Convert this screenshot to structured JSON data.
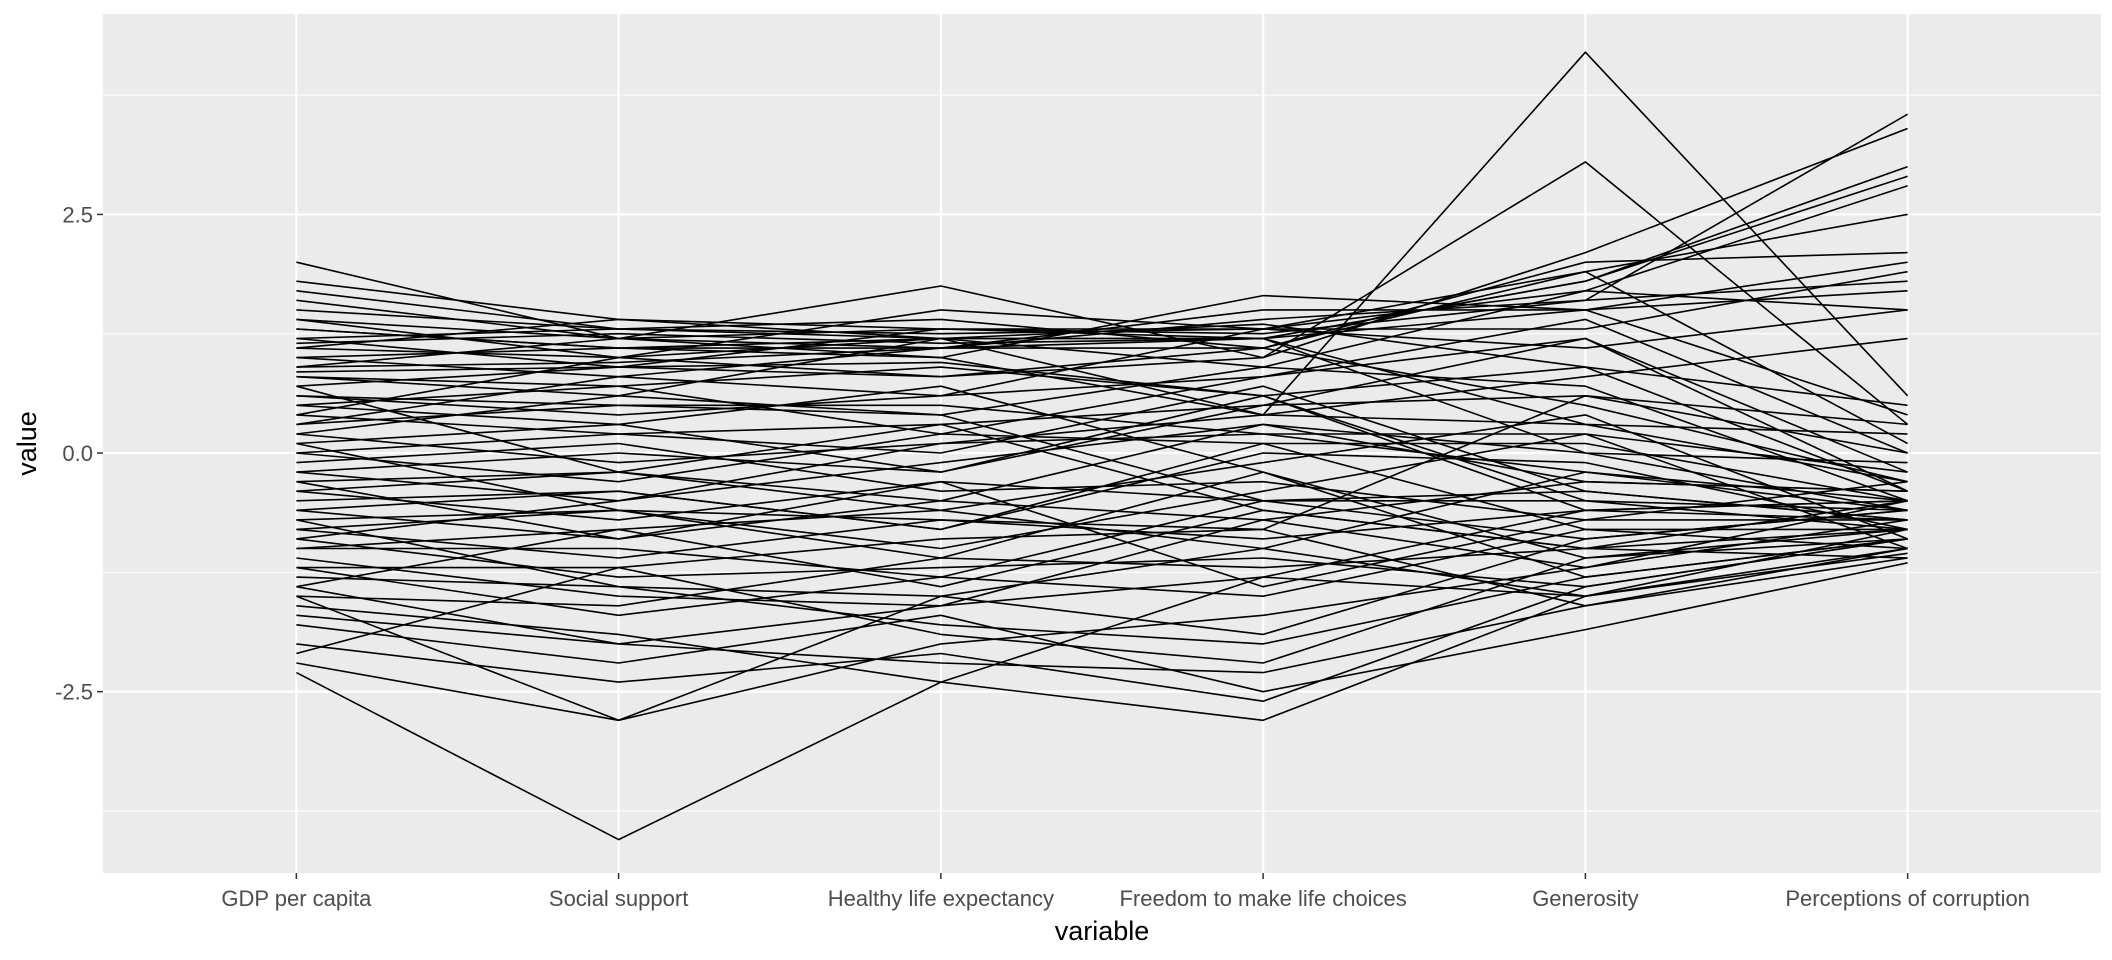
{
  "chart_data": {
    "type": "line",
    "xlabel": "variable",
    "ylabel": "value",
    "categories": [
      "GDP per capita",
      "Social support",
      "Healthy life expectancy",
      "Freedom to make life choices",
      "Generosity",
      "Perceptions of corruption"
    ],
    "ylim": [
      -4.4,
      4.6
    ],
    "yticks": [
      -2.5,
      0.0,
      2.5
    ],
    "ytick_labels": [
      "-2.5",
      "0.0",
      "2.5"
    ],
    "grid": true,
    "legend": "none",
    "colors": {
      "panel": "#ebebeb",
      "grid": "#ffffff",
      "line": "#000000",
      "tick_text": "#4d4d4d"
    },
    "series": [
      {
        "values": [
          2.0,
          1.2,
          1.3,
          1.3,
          1.7,
          2.8
        ]
      },
      {
        "values": [
          1.8,
          1.4,
          1.2,
          1.2,
          1.8,
          3.0
        ]
      },
      {
        "values": [
          1.7,
          1.3,
          1.4,
          1.1,
          1.9,
          2.5
        ]
      },
      {
        "values": [
          1.6,
          1.2,
          1.75,
          1.0,
          2.1,
          3.4
        ]
      },
      {
        "values": [
          1.5,
          1.3,
          1.2,
          1.2,
          1.8,
          2.9
        ]
      },
      {
        "values": [
          1.4,
          1.0,
          1.5,
          1.3,
          1.3,
          1.9
        ]
      },
      {
        "values": [
          1.3,
          1.1,
          1.1,
          1.4,
          1.6,
          3.55
        ]
      },
      {
        "values": [
          1.2,
          0.9,
          1.3,
          1.2,
          1.5,
          1.7
        ]
      },
      {
        "values": [
          1.1,
          1.0,
          1.2,
          0.9,
          1.7,
          1.5
        ]
      },
      {
        "values": [
          1.0,
          0.8,
          1.1,
          1.1,
          2.0,
          2.1
        ]
      },
      {
        "values": [
          0.9,
          1.2,
          1.0,
          1.65,
          1.5,
          0.4
        ]
      },
      {
        "values": [
          0.8,
          0.6,
          1.2,
          0.4,
          4.2,
          0.6
        ]
      },
      {
        "values": [
          0.7,
          0.9,
          0.8,
          1.0,
          3.05,
          0.3
        ]
      },
      {
        "values": [
          0.6,
          0.4,
          0.6,
          0.8,
          1.2,
          -0.2
        ]
      },
      {
        "values": [
          0.5,
          0.7,
          0.9,
          0.6,
          0.9,
          -0.4
        ]
      },
      {
        "values": [
          0.4,
          0.2,
          0.3,
          0.5,
          0.6,
          0.0
        ]
      },
      {
        "values": [
          0.3,
          0.5,
          0.5,
          0.2,
          -0.2,
          -0.6
        ]
      },
      {
        "values": [
          0.2,
          -0.1,
          0.1,
          0.4,
          0.3,
          -0.3
        ]
      },
      {
        "values": [
          0.1,
          0.3,
          -0.2,
          0.6,
          -0.5,
          -0.8
        ]
      },
      {
        "values": [
          0.0,
          -0.3,
          0.2,
          0.1,
          0.1,
          -0.5
        ]
      },
      {
        "values": [
          -0.1,
          0.1,
          -0.4,
          -0.3,
          -0.7,
          -0.7
        ]
      },
      {
        "values": [
          -0.2,
          -0.5,
          -0.1,
          0.3,
          -0.3,
          -0.4
        ]
      },
      {
        "values": [
          -0.3,
          -0.2,
          -0.6,
          -0.1,
          0.4,
          -0.9
        ]
      },
      {
        "values": [
          -0.4,
          -0.7,
          -0.3,
          -0.5,
          -0.9,
          -0.6
        ]
      },
      {
        "values": [
          -0.5,
          -0.4,
          -0.8,
          0.0,
          -0.1,
          -0.8
        ]
      },
      {
        "values": [
          -0.6,
          -0.9,
          -0.5,
          -0.7,
          -1.2,
          -0.5
        ]
      },
      {
        "values": [
          -0.7,
          -0.6,
          -1.0,
          -0.4,
          0.2,
          -1.0
        ]
      },
      {
        "values": [
          -0.8,
          -1.1,
          -0.7,
          -0.9,
          -0.6,
          -0.7
        ]
      },
      {
        "values": [
          -0.9,
          -1.3,
          -1.2,
          -1.1,
          -1.4,
          -0.9
        ]
      },
      {
        "values": [
          -1.0,
          -0.8,
          -1.4,
          -0.6,
          -1.0,
          -1.1
        ]
      },
      {
        "values": [
          -1.1,
          -1.5,
          -1.6,
          -1.3,
          -1.5,
          -0.8
        ]
      },
      {
        "values": [
          -1.2,
          -1.7,
          -1.3,
          -1.5,
          -0.8,
          -1.0
        ]
      },
      {
        "values": [
          -1.3,
          -1.4,
          -1.8,
          -2.0,
          -1.3,
          -0.9
        ]
      },
      {
        "values": [
          -1.4,
          -2.0,
          -2.2,
          -2.3,
          -1.6,
          -1.1
        ]
      },
      {
        "values": [
          -1.5,
          -2.8,
          -2.0,
          -1.7,
          -1.2,
          -0.7
        ]
      },
      {
        "values": [
          -1.6,
          -1.9,
          -2.4,
          -2.8,
          -1.5,
          -1.0
        ]
      },
      {
        "values": [
          -1.8,
          -2.2,
          -1.7,
          -2.5,
          -1.85,
          -1.15
        ]
      },
      {
        "values": [
          -2.0,
          -2.4,
          -2.1,
          -2.6,
          -1.4,
          -0.9
        ]
      },
      {
        "values": [
          -2.1,
          -1.2,
          -1.9,
          -2.2,
          -1.1,
          -0.8
        ]
      },
      {
        "values": [
          -2.2,
          -2.8,
          -1.5,
          -1.9,
          -0.9,
          -0.6
        ]
      },
      {
        "values": [
          -2.3,
          -4.05,
          -2.4,
          -1.3,
          -0.6,
          -0.5
        ]
      },
      {
        "values": [
          1.2,
          1.3,
          1.25,
          1.3,
          1.1,
          1.5
        ]
      },
      {
        "values": [
          1.1,
          1.4,
          1.3,
          1.25,
          1.6,
          1.8
        ]
      },
      {
        "values": [
          1.3,
          1.1,
          1.2,
          1.35,
          0.9,
          0.5
        ]
      },
      {
        "values": [
          0.9,
          0.95,
          1.1,
          1.2,
          0.3,
          0.2
        ]
      },
      {
        "values": [
          0.4,
          1.0,
          0.8,
          1.1,
          0.5,
          -0.3
        ]
      },
      {
        "values": [
          0.3,
          0.8,
          0.6,
          1.3,
          1.9,
          0.1
        ]
      },
      {
        "values": [
          0.2,
          0.6,
          0.4,
          0.9,
          0.7,
          -0.5
        ]
      },
      {
        "values": [
          0.0,
          0.2,
          0.0,
          0.7,
          -0.4,
          -0.7
        ]
      },
      {
        "values": [
          -0.2,
          0.0,
          -0.2,
          0.5,
          1.2,
          -0.4
        ]
      },
      {
        "values": [
          -0.4,
          -0.2,
          -0.5,
          0.3,
          0.0,
          -0.6
        ]
      },
      {
        "values": [
          -0.6,
          -0.4,
          -0.8,
          0.1,
          -0.8,
          -0.8
        ]
      },
      {
        "values": [
          -0.8,
          -0.6,
          -1.1,
          -0.2,
          -1.1,
          -0.9
        ]
      },
      {
        "values": [
          -1.0,
          -1.0,
          -1.3,
          -0.5,
          -0.4,
          -0.7
        ]
      },
      {
        "values": [
          -1.2,
          -1.2,
          -0.9,
          -0.8,
          -1.6,
          -1.0
        ]
      },
      {
        "values": [
          -1.4,
          -0.8,
          -0.6,
          -1.0,
          -0.2,
          -0.5
        ]
      },
      {
        "values": [
          -1.5,
          -1.6,
          -1.1,
          -1.2,
          -1.0,
          -0.8
        ]
      },
      {
        "values": [
          0.5,
          0.3,
          0.7,
          -0.2,
          -1.3,
          -0.9
        ]
      },
      {
        "values": [
          0.6,
          0.5,
          0.4,
          -0.5,
          -0.5,
          -0.6
        ]
      },
      {
        "values": [
          0.8,
          0.7,
          0.2,
          0.8,
          1.4,
          0.0
        ]
      },
      {
        "values": [
          0.7,
          -0.2,
          0.3,
          -0.6,
          -1.0,
          -0.5
        ]
      },
      {
        "values": [
          1.0,
          1.1,
          1.0,
          0.4,
          0.8,
          1.2
        ]
      },
      {
        "values": [
          1.4,
          1.2,
          1.1,
          1.5,
          1.5,
          2.0
        ]
      },
      {
        "values": [
          -0.3,
          -0.9,
          -0.3,
          -1.4,
          -0.7,
          -0.3
        ]
      },
      {
        "values": [
          0.1,
          -0.6,
          -0.7,
          -0.8,
          0.6,
          0.3
        ]
      },
      {
        "values": [
          -0.7,
          -1.4,
          -1.5,
          -1.0,
          -1.5,
          -1.05
        ]
      },
      {
        "values": [
          -1.7,
          -2.0,
          -1.6,
          -0.7,
          -0.3,
          -0.4
        ]
      },
      {
        "values": [
          -0.9,
          -0.5,
          0.1,
          0.2,
          0.2,
          -0.2
        ]
      },
      {
        "values": [
          0.85,
          0.9,
          0.95,
          0.6,
          -0.6,
          -0.5
        ]
      },
      {
        "values": [
          1.15,
          1.25,
          1.15,
          1.2,
          0.0,
          -0.1
        ]
      }
    ]
  }
}
